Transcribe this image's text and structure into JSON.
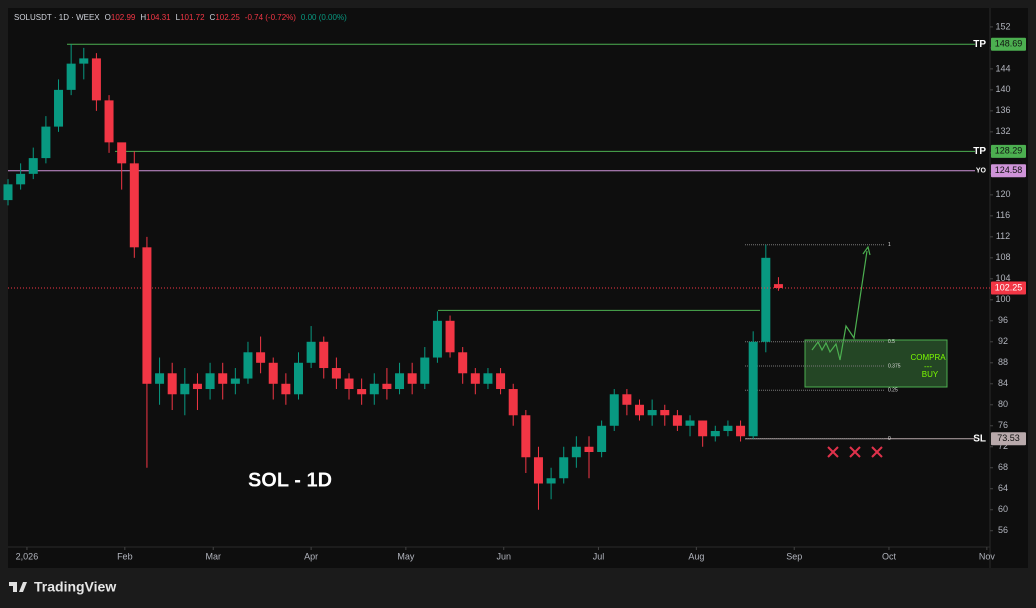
{
  "chart_data": {
    "type": "candlestick",
    "symbol": "SOLUSDT · 1D · WEEX",
    "ohlc_labels": [
      "O",
      "H",
      "L",
      "C"
    ],
    "change": "-0.74 (-0.72%)",
    "volume": "0.00 (0.00%)",
    "annotation": "SOL - 1D",
    "zone_texts": [
      "COMPRA",
      "---",
      "BUY"
    ],
    "fib_levels": [
      1,
      0.5,
      0.375,
      0.25,
      0
    ],
    "brand": "TradingView",
    "up_color": "#089981",
    "down_color": "#f23645",
    "grid": false,
    "x": [
      -6,
      -2,
      2,
      6,
      10,
      14,
      18,
      22,
      26,
      30,
      34,
      38,
      42,
      46,
      50,
      54,
      58,
      62,
      66,
      70,
      74,
      78,
      82,
      86,
      90,
      94,
      98,
      102,
      106,
      110,
      114,
      118,
      122,
      126,
      130,
      134,
      138,
      142,
      146,
      150,
      154,
      158,
      162,
      166,
      170,
      174,
      178,
      182,
      186,
      190,
      194,
      198,
      202,
      206,
      210,
      214,
      218,
      222,
      226,
      230,
      234,
      238
    ],
    "open": [
      119,
      122,
      124,
      127,
      133,
      140,
      145,
      146,
      138,
      130,
      126,
      110,
      84,
      86,
      82,
      84,
      83,
      86,
      84,
      85,
      90,
      88,
      84,
      82,
      88,
      92,
      87,
      85,
      83,
      82,
      84,
      83,
      86,
      84,
      89,
      96,
      90,
      86,
      84,
      86,
      83,
      78,
      70,
      65,
      66,
      70,
      72,
      71,
      76,
      82,
      80,
      78,
      79,
      78,
      76,
      77,
      74,
      75,
      76,
      74,
      92,
      102.99
    ],
    "high": [
      123,
      126,
      129,
      135,
      142,
      148.7,
      148,
      147,
      139,
      129,
      128.3,
      112,
      89,
      88,
      87,
      86,
      88,
      88,
      87,
      92,
      93,
      89,
      86,
      90,
      95,
      93,
      89,
      86,
      85,
      86,
      87,
      88,
      88,
      91,
      97.8,
      97,
      91,
      87,
      87,
      87,
      84,
      79,
      72,
      68,
      72,
      74,
      74,
      77,
      83,
      83,
      81,
      81,
      80,
      79,
      78,
      77,
      76,
      77,
      77,
      94,
      110.5,
      104.31
    ],
    "low": [
      118,
      121,
      123,
      126,
      132,
      139,
      142,
      136,
      128,
      121,
      108,
      68,
      80,
      79,
      78,
      79,
      81,
      81,
      82,
      84,
      86,
      81,
      80,
      81,
      87,
      85,
      83,
      81,
      80,
      80,
      81,
      82,
      82,
      83,
      88,
      89,
      84,
      82,
      83,
      82,
      76,
      67,
      60,
      62,
      65,
      68,
      66,
      70,
      75,
      78,
      77,
      76,
      76,
      75,
      74,
      72,
      73,
      74,
      73,
      73.5,
      90,
      101.72
    ],
    "close": [
      122,
      124,
      127,
      133,
      140,
      145,
      146,
      138,
      130,
      126,
      110,
      84,
      86,
      82,
      84,
      83,
      86,
      84,
      85,
      90,
      88,
      84,
      82,
      88,
      92,
      87,
      85,
      83,
      82,
      84,
      83,
      86,
      84,
      89,
      96,
      90,
      86,
      84,
      86,
      83,
      78,
      70,
      65,
      66,
      70,
      72,
      71,
      76,
      82,
      80,
      78,
      79,
      78,
      76,
      77,
      74,
      75,
      76,
      74,
      92,
      108,
      102.25
    ],
    "levels": [
      {
        "label": "TP",
        "value": 148.69,
        "color": "#4caf50"
      },
      {
        "label": "TP",
        "value": 128.29,
        "color": "#4caf50"
      },
      {
        "label": "YO",
        "value": 124.58,
        "color": "#ce93d8"
      },
      {
        "label": "SL",
        "value": 73.53,
        "color": "#b8a9ab"
      }
    ],
    "xlim": [
      -6,
      305
    ],
    "xticks": [
      {
        "value": 0,
        "label": "2,026"
      },
      {
        "value": 31,
        "label": "Feb"
      },
      {
        "value": 59,
        "label": "Mar"
      },
      {
        "value": 90,
        "label": "Apr"
      },
      {
        "value": 120,
        "label": "May"
      },
      {
        "value": 151,
        "label": "Jun"
      },
      {
        "value": 181,
        "label": "Jul"
      },
      {
        "value": 212,
        "label": "Aug"
      },
      {
        "value": 243,
        "label": "Sep"
      },
      {
        "value": 273,
        "label": "Oct"
      },
      {
        "value": 304,
        "label": "Nov"
      }
    ],
    "ylim": [
      52.9,
      155.6
    ],
    "yticks": [
      56,
      60,
      64,
      68,
      72,
      76,
      80,
      84,
      88,
      92,
      96,
      100,
      104,
      108,
      112,
      116,
      120,
      124,
      128,
      132,
      136,
      140,
      144,
      148,
      152
    ]
  }
}
